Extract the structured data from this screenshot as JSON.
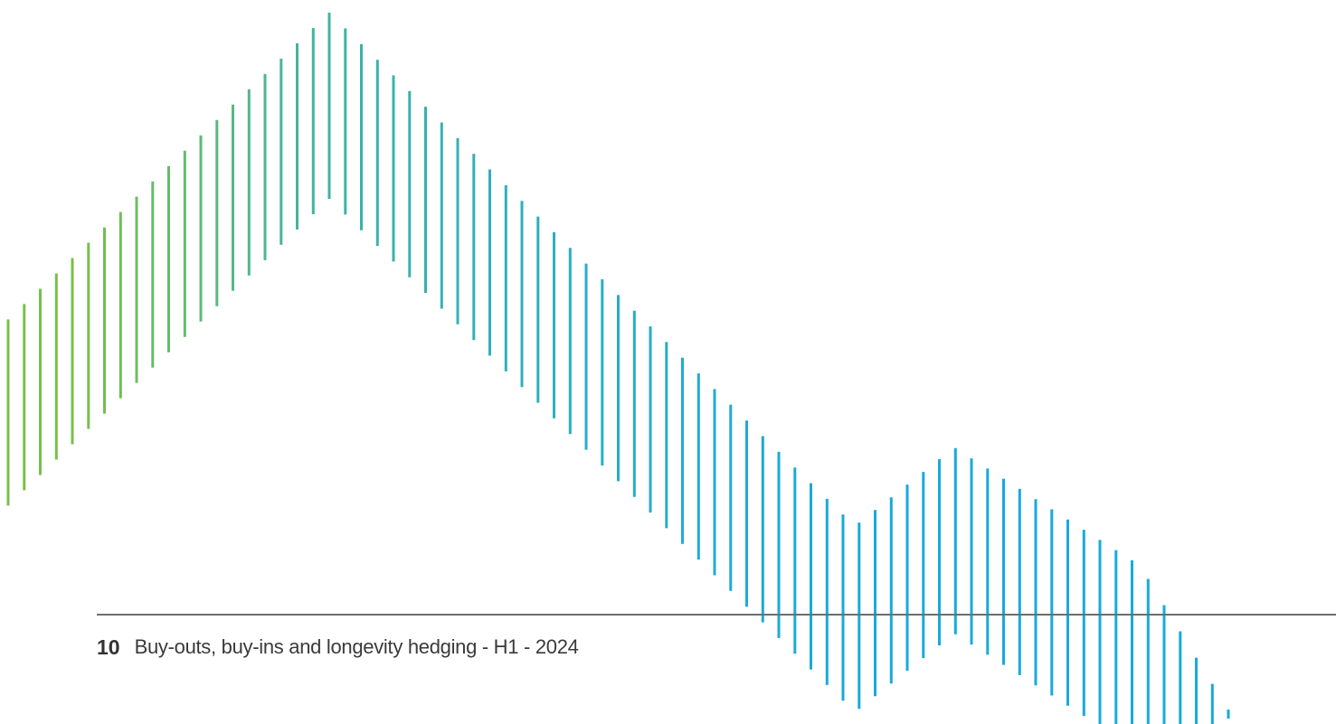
{
  "footer": {
    "page_number": "10",
    "document_title": "Buy-outs, buy-ins and longevity hedging - H1 - 2024"
  },
  "decoration": {
    "icon": "vertical-line-mountain-pattern",
    "colors": {
      "green": "#78bf4e",
      "teal": "#3db3a7",
      "blue": "#17aadc"
    }
  },
  "colors": {
    "rule": "#6e6e6e",
    "text": "#3a3a3a"
  }
}
